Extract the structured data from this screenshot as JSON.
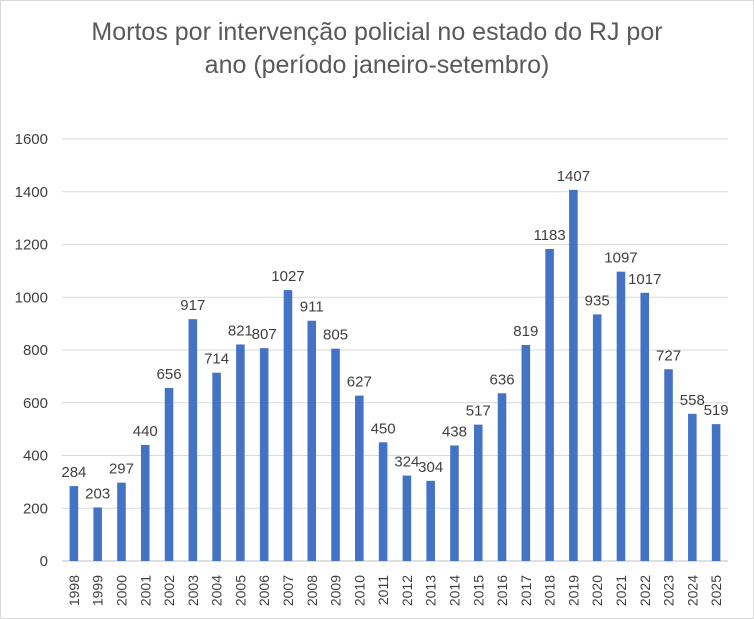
{
  "chart_data": {
    "type": "bar",
    "title_lines": [
      "Mortos por intervenção policial no estado do RJ por",
      "ano (período janeiro-setembro)"
    ],
    "xlabel": "",
    "ylabel": "",
    "ylim": [
      0,
      1600
    ],
    "yticks": [
      "0",
      "200",
      "400",
      "600",
      "800",
      "1000",
      "1200",
      "1400",
      "1600"
    ],
    "grid": true,
    "legend": "none",
    "bar_color": "#4472C4",
    "categories": [
      "1998",
      "1999",
      "2000",
      "2001",
      "2002",
      "2003",
      "2004",
      "2005",
      "2006",
      "2007",
      "2008",
      "2009",
      "2010",
      "2011",
      "2012",
      "2013",
      "2014",
      "2015",
      "2016",
      "2017",
      "2018",
      "2019",
      "2020",
      "2021",
      "2022",
      "2023",
      "2024",
      "2025"
    ],
    "values": [
      284,
      203,
      297,
      440,
      656,
      917,
      714,
      821,
      807,
      1027,
      911,
      805,
      627,
      450,
      324,
      304,
      438,
      517,
      636,
      819,
      1183,
      1407,
      935,
      1097,
      1017,
      727,
      558,
      519
    ]
  }
}
